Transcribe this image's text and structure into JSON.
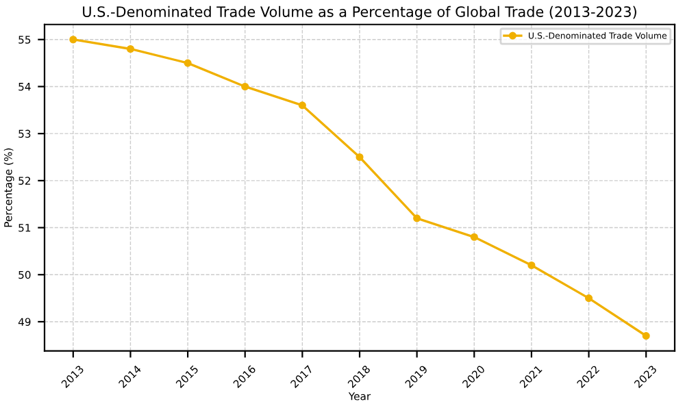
{
  "chart_data": {
    "type": "line",
    "title": "U.S.-Denominated Trade Volume as a Percentage of Global Trade (2013-2023)",
    "xlabel": "Year",
    "ylabel": "Percentage (%)",
    "categories": [
      "2013",
      "2014",
      "2015",
      "2016",
      "2017",
      "2018",
      "2019",
      "2020",
      "2021",
      "2022",
      "2023"
    ],
    "series": [
      {
        "name": "U.S.-Denominated Trade Volume",
        "color": "#f0b000",
        "values": [
          55.0,
          54.8,
          54.5,
          54.0,
          53.6,
          52.5,
          51.2,
          50.8,
          50.2,
          49.5,
          48.7
        ]
      }
    ],
    "ylim": [
      48.38,
      55.32
    ],
    "yticks": [
      49,
      50,
      51,
      52,
      53,
      54,
      55
    ],
    "grid": true,
    "legend": "top right",
    "marker": "circle",
    "line_style": "solid"
  }
}
